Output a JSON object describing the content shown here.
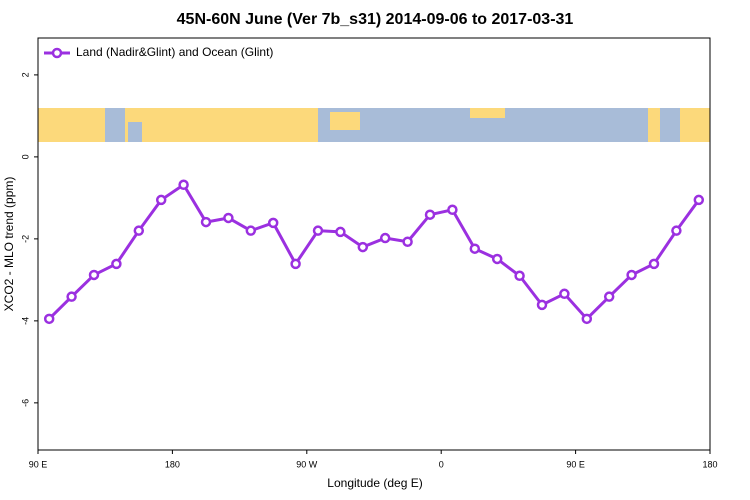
{
  "chart_data": {
    "type": "line",
    "title": "45N-60N June (Ver 7b_s31)   2014-09-06 to 2017-03-31",
    "xlabel": "Longitude (deg E)",
    "ylabel": "XCO2 - MLO trend (ppm)",
    "x": [
      97.5,
      112.5,
      127.5,
      142.5,
      157.5,
      172.5,
      187.5,
      202.5,
      217.5,
      232.5,
      247.5,
      262.5,
      277.5,
      292.5,
      307.5,
      322.5,
      337.5,
      352.5,
      367.5,
      382.5,
      397.5,
      412.5,
      427.5,
      442.5,
      457.5,
      472.5,
      487.5,
      502.5,
      517.5,
      532.5
    ],
    "series": [
      {
        "name": "Land (Nadir&Glint) and Ocean (Glint)",
        "color": "#9b30e0",
        "values": [
          -3.95,
          -3.41,
          -2.88,
          -2.61,
          -1.8,
          -1.05,
          -0.68,
          -1.59,
          -1.49,
          -1.8,
          -1.61,
          -2.61,
          -1.8,
          -1.83,
          -2.2,
          -1.98,
          -2.07,
          -1.41,
          -1.29,
          -2.24,
          -2.49,
          -2.9,
          -3.61,
          -3.34,
          -3.95,
          -3.41,
          -2.88,
          -2.61,
          -1.8,
          -1.05
        ]
      }
    ],
    "xlim": [
      90,
      540
    ],
    "xticks": [
      {
        "value": 90,
        "label": "90 E"
      },
      180,
      {
        "value": 270,
        "label": "90 W"
      },
      {
        "value": 360,
        "label": "0"
      },
      {
        "value": 450,
        "label": "90 E"
      },
      {
        "value": 540,
        "label": "180"
      }
    ],
    "ylim": [
      -7.15,
      2.9
    ],
    "yticks": [
      2,
      0,
      -2,
      -4,
      -6
    ],
    "legend": "top-left"
  }
}
